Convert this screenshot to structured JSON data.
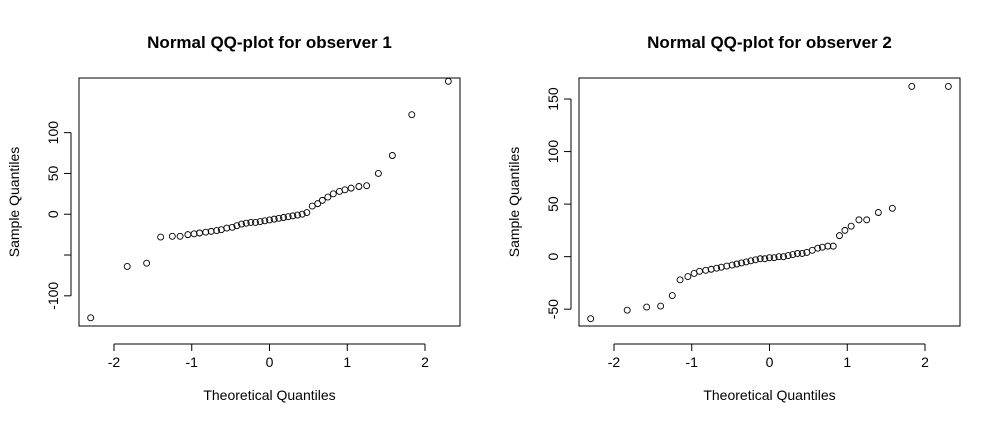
{
  "chart_data": [
    {
      "type": "scatter",
      "title": "Normal QQ-plot for observer 1",
      "xlabel": "Theoretical Quantiles",
      "ylabel": "Sample Quantiles",
      "xlim": [
        -2.45,
        2.45
      ],
      "ylim": [
        -137,
        167
      ],
      "xticks": [
        -2,
        -1,
        0,
        1,
        2
      ],
      "xtick_labels": [
        "-2",
        "-1",
        "0",
        "1",
        "2"
      ],
      "yticks": [
        -100,
        -50,
        0,
        50,
        100
      ],
      "ytick_labels": [
        "-100",
        "",
        "0",
        "50",
        "100"
      ],
      "grid": false,
      "x": [
        -2.3,
        -1.83,
        -1.58,
        -1.4,
        -1.25,
        -1.15,
        -1.05,
        -0.97,
        -0.9,
        -0.82,
        -0.75,
        -0.68,
        -0.62,
        -0.55,
        -0.48,
        -0.42,
        -0.36,
        -0.3,
        -0.24,
        -0.18,
        -0.12,
        -0.06,
        0.0,
        0.06,
        0.12,
        0.18,
        0.24,
        0.3,
        0.36,
        0.42,
        0.48,
        0.55,
        0.62,
        0.68,
        0.75,
        0.82,
        0.9,
        0.97,
        1.05,
        1.15,
        1.25,
        1.4,
        1.58,
        1.83,
        2.3
      ],
      "y": [
        -127,
        -64,
        -60,
        -28,
        -27,
        -27,
        -25,
        -24,
        -23,
        -22,
        -21,
        -20,
        -19,
        -17,
        -16,
        -14,
        -12,
        -11,
        -10,
        -10,
        -9,
        -8,
        -7,
        -6,
        -5,
        -4,
        -3,
        -2,
        -1,
        0,
        2,
        10,
        13,
        17,
        21,
        25,
        28,
        30,
        32,
        34,
        35,
        50,
        72,
        122,
        163
      ]
    },
    {
      "type": "scatter",
      "title": "Normal QQ-plot for observer 2",
      "xlabel": "Theoretical Quantiles",
      "ylabel": "Sample Quantiles",
      "xlim": [
        -2.45,
        2.45
      ],
      "ylim": [
        -66,
        170
      ],
      "xticks": [
        -2,
        -1,
        0,
        1,
        2
      ],
      "xtick_labels": [
        "-2",
        "-1",
        "0",
        "1",
        "2"
      ],
      "yticks": [
        -50,
        0,
        50,
        100,
        150
      ],
      "ytick_labels": [
        "-50",
        "0",
        "50",
        "100",
        "150"
      ],
      "grid": false,
      "x": [
        -2.3,
        -1.83,
        -1.58,
        -1.4,
        -1.25,
        -1.15,
        -1.05,
        -0.97,
        -0.9,
        -0.82,
        -0.75,
        -0.68,
        -0.62,
        -0.55,
        -0.48,
        -0.42,
        -0.36,
        -0.3,
        -0.24,
        -0.18,
        -0.12,
        -0.06,
        0.0,
        0.06,
        0.12,
        0.18,
        0.24,
        0.3,
        0.36,
        0.42,
        0.48,
        0.55,
        0.62,
        0.68,
        0.75,
        0.82,
        0.9,
        0.97,
        1.05,
        1.15,
        1.25,
        1.4,
        1.58,
        1.83,
        2.3
      ],
      "y": [
        -59,
        -51,
        -48,
        -47,
        -37,
        -22,
        -19,
        -16,
        -14,
        -13,
        -12,
        -11,
        -10,
        -9,
        -8,
        -7,
        -6,
        -5,
        -4,
        -3,
        -2,
        -2,
        -1,
        -1,
        0,
        0,
        1,
        2,
        3,
        3,
        4,
        6,
        8,
        9,
        10,
        10,
        20,
        25,
        29,
        35,
        35,
        42,
        46,
        162,
        162
      ]
    }
  ]
}
